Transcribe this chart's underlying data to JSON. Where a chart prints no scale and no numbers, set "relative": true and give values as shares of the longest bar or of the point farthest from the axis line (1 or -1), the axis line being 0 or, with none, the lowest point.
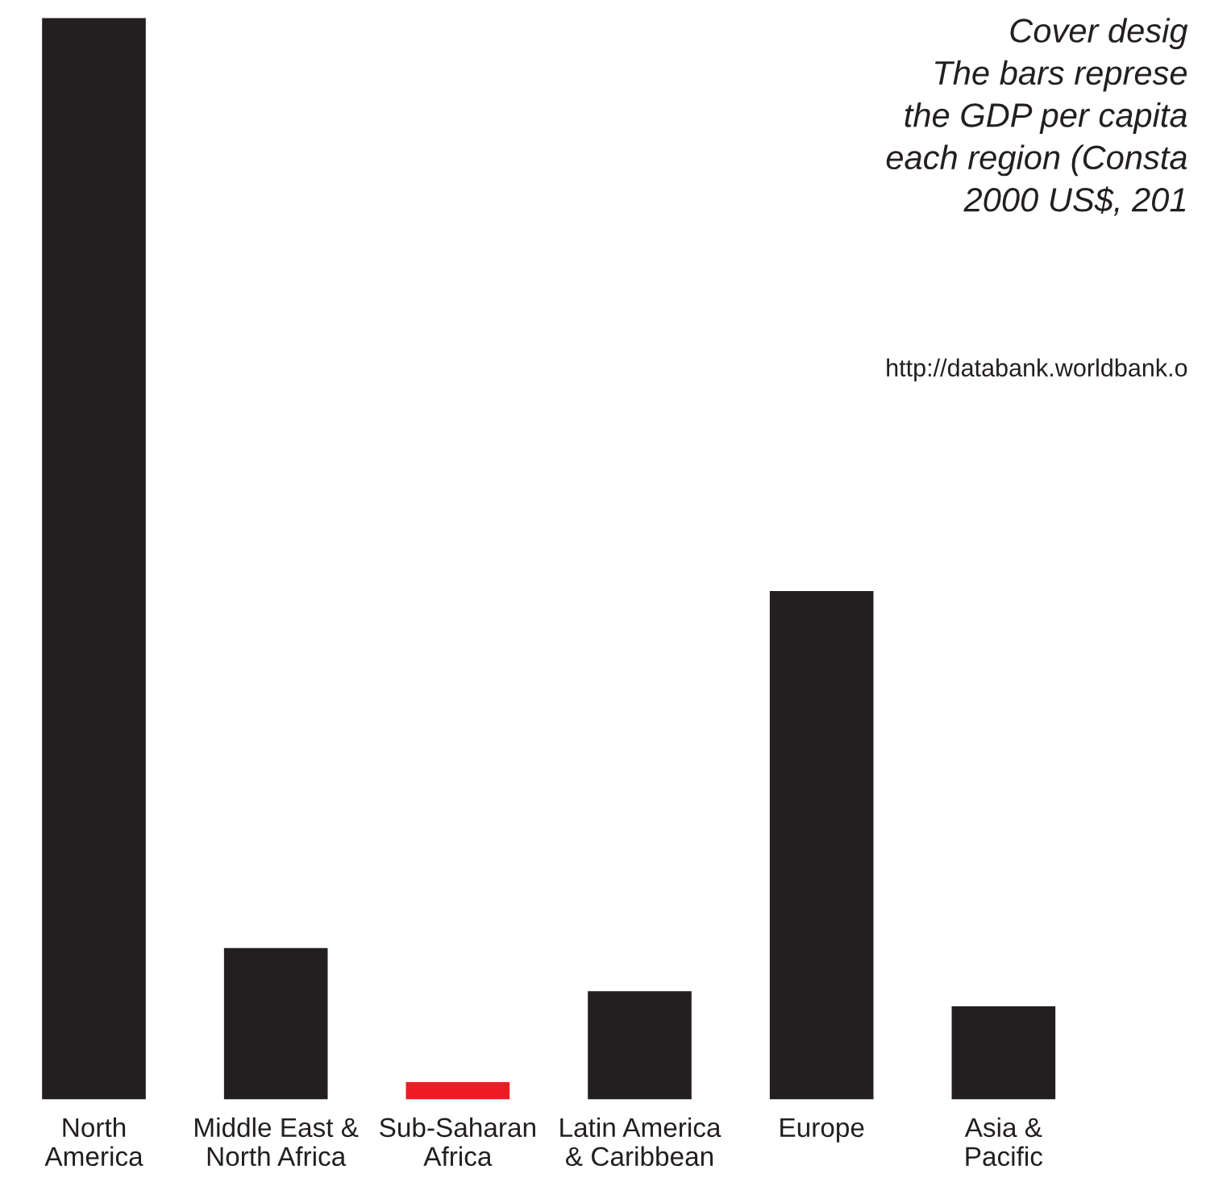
{
  "chart_data": {
    "type": "bar",
    "relative": true,
    "categories": [
      "North\nAmerica",
      "Middle East &\nNorth Africa",
      "Sub-Saharan\nAfrica",
      "Latin America\n& Caribbean",
      "Europe",
      "Asia &\nPacific"
    ],
    "values": [
      1,
      0.14,
      0.016,
      0.1,
      0.47,
      0.086
    ],
    "colors": [
      "#231f20",
      "#231f20",
      "#ed1c24",
      "#231f20",
      "#231f20",
      "#231f20"
    ],
    "annotations": [
      "Cover desig\nThe bars represe\nthe GDP per capita\neach region (Consta\n2000 US$, 201",
      "http://databank.worldbank.o"
    ],
    "grid": false,
    "legend": false
  }
}
